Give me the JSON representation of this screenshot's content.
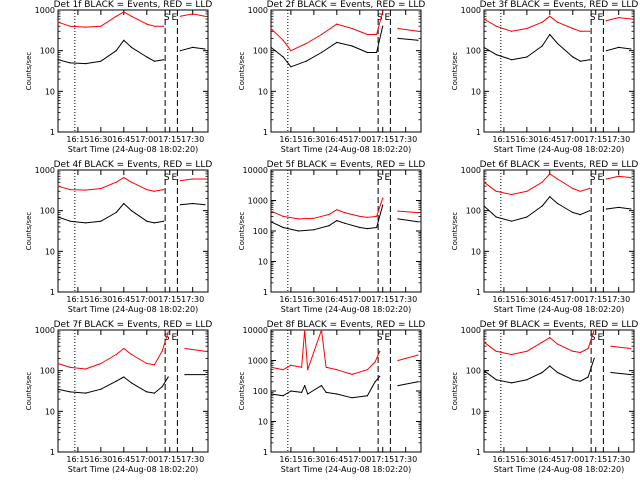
{
  "figure": {
    "xlabel": "Start Time (24-Aug-08 18:02:20)",
    "ylabel": "Counts/sec",
    "x_tick_labels": [
      "16:15",
      "16:30",
      "16:45",
      "17:00",
      "17:15",
      "17:30"
    ],
    "y_tick_labels": [
      "1",
      "10",
      "100",
      "1000",
      "10000"
    ],
    "colors": {
      "events": "#000000",
      "lld": "#ff0000",
      "axes": "#000000",
      "background": "#ffffff"
    }
  },
  "chart_data": [
    {
      "type": "line",
      "detector": "1f",
      "title": "Det 1f BLACK = Events, RED = LLD",
      "xlabel": "Start Time (24-Aug-08 18:02:20)",
      "ylabel": "Counts/sec",
      "y_scale": "log",
      "ylim": [
        1,
        1000
      ],
      "xlim": [
        "16:02",
        "17:40"
      ],
      "vlines_dotted": [
        "16:13"
      ],
      "vlines_dashed": [
        "17:12",
        "17:20"
      ],
      "markers": [
        "S",
        "E"
      ],
      "markers_at": [
        "17:13",
        "17:18"
      ],
      "x": [
        "16:02",
        "16:10",
        "16:20",
        "16:30",
        "16:40",
        "16:45",
        "16:50",
        "17:00",
        "17:05",
        "17:11",
        "17:18",
        "17:22",
        "17:30",
        "17:38"
      ],
      "series": [
        {
          "name": "Events",
          "color": "#000000",
          "values": [
            60,
            50,
            48,
            55,
            100,
            180,
            120,
            70,
            55,
            60,
            null,
            100,
            120,
            110
          ]
        },
        {
          "name": "LLD",
          "color": "#ff0000",
          "values": [
            500,
            400,
            380,
            400,
            700,
            900,
            700,
            450,
            400,
            400,
            null,
            700,
            800,
            700
          ]
        }
      ]
    },
    {
      "type": "line",
      "detector": "2f",
      "title": "Det 2f BLACK = Events, RED = LLD",
      "xlabel": "Start Time (24-Aug-08 18:02:20)",
      "ylabel": "Counts/sec",
      "y_scale": "log",
      "ylim": [
        1,
        1000
      ],
      "xlim": [
        "16:02",
        "17:40"
      ],
      "vlines_dotted": [
        "16:13"
      ],
      "vlines_dashed": [
        "17:12",
        "17:20"
      ],
      "markers": [
        "S",
        "E"
      ],
      "markers_at": [
        "17:13",
        "17:18"
      ],
      "x": [
        "16:02",
        "16:10",
        "16:15",
        "16:25",
        "16:35",
        "16:45",
        "16:55",
        "17:05",
        "17:11",
        "17:15",
        "17:18",
        "17:25",
        "17:38"
      ],
      "series": [
        {
          "name": "Events",
          "color": "#000000",
          "values": [
            120,
            70,
            40,
            55,
            90,
            160,
            130,
            90,
            90,
            400,
            null,
            200,
            180
          ]
        },
        {
          "name": "LLD",
          "color": "#ff0000",
          "values": [
            350,
            180,
            100,
            150,
            250,
            450,
            350,
            250,
            250,
            900,
            null,
            350,
            300
          ]
        }
      ]
    },
    {
      "type": "line",
      "detector": "3f",
      "title": "Det 3f BLACK = Events, RED = LLD",
      "xlabel": "Start Time (24-Aug-08 18:02:20)",
      "ylabel": "Counts/sec",
      "y_scale": "log",
      "ylim": [
        1,
        1000
      ],
      "xlim": [
        "16:02",
        "17:40"
      ],
      "vlines_dotted": [
        "16:13"
      ],
      "vlines_dashed": [
        "17:12",
        "17:20"
      ],
      "markers": [
        "S",
        "E"
      ],
      "markers_at": [
        "17:13",
        "17:18"
      ],
      "x": [
        "16:02",
        "16:10",
        "16:20",
        "16:30",
        "16:40",
        "16:45",
        "16:50",
        "17:00",
        "17:05",
        "17:11",
        "17:18",
        "17:22",
        "17:30",
        "17:38"
      ],
      "series": [
        {
          "name": "Events",
          "color": "#000000",
          "values": [
            120,
            80,
            60,
            70,
            130,
            250,
            150,
            70,
            55,
            60,
            null,
            100,
            120,
            110
          ]
        },
        {
          "name": "LLD",
          "color": "#ff0000",
          "values": [
            600,
            400,
            300,
            350,
            500,
            700,
            500,
            350,
            300,
            300,
            null,
            550,
            650,
            600
          ]
        }
      ]
    },
    {
      "type": "line",
      "detector": "4f",
      "title": "Det 4f BLACK = Events, RED = LLD",
      "xlabel": "Start Time (24-Aug-08 18:02:20)",
      "ylabel": "Counts/sec",
      "y_scale": "log",
      "ylim": [
        1,
        1000
      ],
      "xlim": [
        "16:02",
        "17:40"
      ],
      "vlines_dotted": [
        "16:13"
      ],
      "vlines_dashed": [
        "17:12",
        "17:20"
      ],
      "markers": [
        "S",
        "E"
      ],
      "markers_at": [
        "17:13",
        "17:18"
      ],
      "x": [
        "16:02",
        "16:10",
        "16:20",
        "16:30",
        "16:40",
        "16:45",
        "16:50",
        "17:00",
        "17:05",
        "17:11",
        "17:18",
        "17:22",
        "17:30",
        "17:38"
      ],
      "series": [
        {
          "name": "Events",
          "color": "#000000",
          "values": [
            70,
            55,
            50,
            55,
            90,
            150,
            100,
            55,
            50,
            55,
            null,
            140,
            150,
            140
          ]
        },
        {
          "name": "LLD",
          "color": "#ff0000",
          "values": [
            400,
            330,
            320,
            350,
            500,
            650,
            500,
            330,
            300,
            330,
            null,
            550,
            600,
            600
          ]
        }
      ]
    },
    {
      "type": "line",
      "detector": "5f",
      "title": "Det 5f BLACK = Events, RED = LLD",
      "xlabel": "Start Time (24-Aug-08 18:02:20)",
      "ylabel": "Counts/sec",
      "y_scale": "log",
      "ylim": [
        1,
        10000
      ],
      "xlim": [
        "16:02",
        "17:40"
      ],
      "vlines_dotted": [
        "16:13"
      ],
      "vlines_dashed": [
        "17:12",
        "17:20"
      ],
      "markers": [
        "S",
        "E"
      ],
      "markers_at": [
        "17:13",
        "17:18"
      ],
      "x": [
        "16:02",
        "16:10",
        "16:20",
        "16:30",
        "16:40",
        "16:45",
        "16:50",
        "17:00",
        "17:05",
        "17:11",
        "17:15",
        "17:18",
        "17:25",
        "17:38"
      ],
      "series": [
        {
          "name": "Events",
          "color": "#000000",
          "values": [
            200,
            130,
            100,
            110,
            150,
            220,
            180,
            130,
            120,
            130,
            700,
            null,
            250,
            200
          ]
        },
        {
          "name": "LLD",
          "color": "#ff0000",
          "values": [
            450,
            300,
            250,
            260,
            350,
            500,
            400,
            300,
            280,
            300,
            1200,
            null,
            450,
            400
          ]
        }
      ]
    },
    {
      "type": "line",
      "detector": "6f",
      "title": "Det 6f BLACK = Events, RED = LLD",
      "xlabel": "Start Time (24-Aug-08 18:02:20)",
      "ylabel": "Counts/sec",
      "y_scale": "log",
      "ylim": [
        1,
        1000
      ],
      "xlim": [
        "16:02",
        "17:40"
      ],
      "vlines_dotted": [
        "16:13"
      ],
      "vlines_dashed": [
        "17:12",
        "17:20"
      ],
      "markers": [
        "S",
        "E"
      ],
      "markers_at": [
        "17:13",
        "17:18"
      ],
      "x": [
        "16:02",
        "16:10",
        "16:20",
        "16:30",
        "16:40",
        "16:45",
        "16:50",
        "17:00",
        "17:05",
        "17:11",
        "17:18",
        "17:22",
        "17:30",
        "17:38"
      ],
      "series": [
        {
          "name": "Events",
          "color": "#000000",
          "values": [
            130,
            70,
            55,
            70,
            130,
            220,
            150,
            90,
            80,
            100,
            null,
            110,
            120,
            110
          ]
        },
        {
          "name": "LLD",
          "color": "#ff0000",
          "values": [
            500,
            300,
            250,
            300,
            500,
            800,
            600,
            350,
            300,
            350,
            null,
            600,
            700,
            650
          ]
        }
      ]
    },
    {
      "type": "line",
      "detector": "7f",
      "title": "Det 7f BLACK = Events, RED = LLD",
      "xlabel": "Start Time (24-Aug-08 18:02:20)",
      "ylabel": "Counts/sec",
      "y_scale": "log",
      "ylim": [
        1,
        1000
      ],
      "xlim": [
        "16:02",
        "17:40"
      ],
      "vlines_dotted": [
        "16:13"
      ],
      "vlines_dashed": [
        "17:12",
        "17:20"
      ],
      "markers": [
        "S",
        "E"
      ],
      "markers_at": [
        "17:13",
        "17:18"
      ],
      "x": [
        "16:02",
        "16:10",
        "16:20",
        "16:30",
        "16:40",
        "16:45",
        "16:50",
        "17:00",
        "17:05",
        "17:10",
        "17:14",
        "17:18",
        "17:25",
        "17:38"
      ],
      "series": [
        {
          "name": "Events",
          "color": "#000000",
          "values": [
            35,
            30,
            28,
            35,
            55,
            70,
            50,
            30,
            28,
            40,
            70,
            null,
            80,
            80
          ]
        },
        {
          "name": "LLD",
          "color": "#ff0000",
          "values": [
            150,
            120,
            110,
            150,
            250,
            350,
            250,
            150,
            140,
            300,
            900,
            null,
            350,
            300
          ]
        }
      ]
    },
    {
      "type": "line",
      "detector": "8f",
      "title": "Det 8f BLACK = Events, RED = LLD",
      "xlabel": "Start Time (24-Aug-08 18:02:20)",
      "ylabel": "Counts/sec",
      "y_scale": "log",
      "ylim": [
        1,
        10000
      ],
      "xlim": [
        "16:02",
        "17:40"
      ],
      "vlines_dotted": [
        "16:13"
      ],
      "vlines_dashed": [
        "17:12",
        "17:20"
      ],
      "markers": [
        "S",
        "E"
      ],
      "markers_at": [
        "17:13",
        "17:18"
      ],
      "x": [
        "16:02",
        "16:10",
        "16:15",
        "16:22",
        "16:24",
        "16:26",
        "16:35",
        "16:38",
        "16:45",
        "16:55",
        "17:05",
        "17:10",
        "17:13",
        "17:18",
        "17:25",
        "17:38"
      ],
      "series": [
        {
          "name": "Events",
          "color": "#000000",
          "values": [
            80,
            70,
            100,
            90,
            150,
            80,
            150,
            90,
            80,
            60,
            70,
            200,
            300,
            null,
            150,
            200
          ]
        },
        {
          "name": "LLD",
          "color": "#ff0000",
          "values": [
            600,
            500,
            700,
            600,
            10000,
            500,
            10000,
            600,
            500,
            350,
            500,
            900,
            2000,
            null,
            1000,
            1500
          ]
        }
      ]
    },
    {
      "type": "line",
      "detector": "9f",
      "title": "Det 9f BLACK = Events, RED = LLD",
      "xlabel": "Start Time (24-Aug-08 18:02:20)",
      "ylabel": "Counts/sec",
      "y_scale": "log",
      "ylim": [
        1,
        1000
      ],
      "xlim": [
        "16:02",
        "17:40"
      ],
      "vlines_dotted": [
        "16:13"
      ],
      "vlines_dashed": [
        "17:12",
        "17:20"
      ],
      "markers": [
        "S",
        "E"
      ],
      "markers_at": [
        "17:13",
        "17:18"
      ],
      "x": [
        "16:02",
        "16:10",
        "16:20",
        "16:30",
        "16:40",
        "16:45",
        "16:50",
        "17:00",
        "17:05",
        "17:10",
        "17:14",
        "17:18",
        "17:25",
        "17:38"
      ],
      "series": [
        {
          "name": "Events",
          "color": "#000000",
          "values": [
            100,
            60,
            50,
            60,
            90,
            130,
            90,
            60,
            55,
            70,
            200,
            null,
            90,
            80
          ]
        },
        {
          "name": "LLD",
          "color": "#ff0000",
          "values": [
            500,
            300,
            250,
            300,
            500,
            650,
            450,
            300,
            280,
            350,
            1000,
            null,
            400,
            350
          ]
        }
      ]
    }
  ]
}
